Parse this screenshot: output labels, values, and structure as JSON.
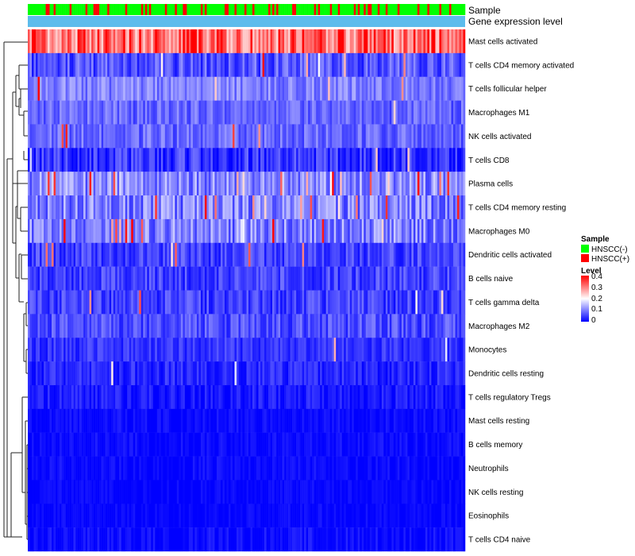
{
  "chart_data": {
    "type": "heatmap",
    "title": "",
    "n_samples": 220,
    "annotation_tracks": [
      {
        "name": "Sample"
      },
      {
        "name": "Gene expression level"
      }
    ],
    "rows": [
      {
        "label": "Mast cells activated",
        "mean": 0.3,
        "spread": 0.07,
        "hot_prob": 0.15
      },
      {
        "label": "T cells CD4 memory activated",
        "mean": 0.065,
        "spread": 0.05,
        "hot_prob": 0.03
      },
      {
        "label": "T cells follicular helper",
        "mean": 0.1,
        "spread": 0.04,
        "hot_prob": 0.02
      },
      {
        "label": "Macrophages M1",
        "mean": 0.08,
        "spread": 0.04,
        "hot_prob": 0.01
      },
      {
        "label": "NK cells activated",
        "mean": 0.08,
        "spread": 0.04,
        "hot_prob": 0.01
      },
      {
        "label": "T cells CD8",
        "mean": 0.04,
        "spread": 0.05,
        "hot_prob": 0.01
      },
      {
        "label": "Plasma cells",
        "mean": 0.11,
        "spread": 0.06,
        "hot_prob": 0.06
      },
      {
        "label": "T cells CD4 memory resting",
        "mean": 0.1,
        "spread": 0.06,
        "hot_prob": 0.04
      },
      {
        "label": "Macrophages M0",
        "mean": 0.1,
        "spread": 0.06,
        "hot_prob": 0.05
      },
      {
        "label": "Dendritic cells activated",
        "mean": 0.05,
        "spread": 0.04,
        "hot_prob": 0.03
      },
      {
        "label": "B cells naive",
        "mean": 0.05,
        "spread": 0.04,
        "hot_prob": 0.01
      },
      {
        "label": "T cells gamma delta",
        "mean": 0.05,
        "spread": 0.04,
        "hot_prob": 0.01
      },
      {
        "label": "Macrophages M2",
        "mean": 0.06,
        "spread": 0.04,
        "hot_prob": 0.01
      },
      {
        "label": "Monocytes",
        "mean": 0.04,
        "spread": 0.03,
        "hot_prob": 0.005
      },
      {
        "label": "Dendritic cells resting",
        "mean": 0.03,
        "spread": 0.03,
        "hot_prob": 0.005
      },
      {
        "label": "T cells regulatory  Tregs",
        "mean": 0.015,
        "spread": 0.03,
        "hot_prob": 0.0
      },
      {
        "label": "Mast cells resting",
        "mean": 0.005,
        "spread": 0.02,
        "hot_prob": 0.0
      },
      {
        "label": "B cells memory",
        "mean": 0.005,
        "spread": 0.02,
        "hot_prob": 0.0
      },
      {
        "label": "Neutrophils",
        "mean": 0.005,
        "spread": 0.02,
        "hot_prob": 0.0
      },
      {
        "label": "NK cells resting",
        "mean": 0.003,
        "spread": 0.015,
        "hot_prob": 0.0
      },
      {
        "label": "Eosinophils",
        "mean": 0.003,
        "spread": 0.015,
        "hot_prob": 0.0
      },
      {
        "label": "T cells CD4 naive",
        "mean": 0.005,
        "spread": 0.025,
        "hot_prob": 0.0
      }
    ],
    "legend": {
      "sample": {
        "title": "Sample",
        "items": [
          {
            "label": "HNSCC(-)",
            "color": "#00ff00"
          },
          {
            "label": "HNSCC(+)",
            "color": "#ff0000"
          }
        ]
      },
      "level": {
        "title": "Level",
        "ticks": [
          "0.4",
          "0.3",
          "0.2",
          "0.1",
          "0"
        ],
        "range": [
          0,
          0.4
        ],
        "colors": [
          "#0000ff",
          "#ffffff",
          "#ff0000"
        ]
      }
    },
    "gene_expression_color": "#5cbcec",
    "sample_colors": {
      "neg": "#00ff00",
      "pos": "#ff0000"
    },
    "dendrogram_color": "#222222"
  }
}
